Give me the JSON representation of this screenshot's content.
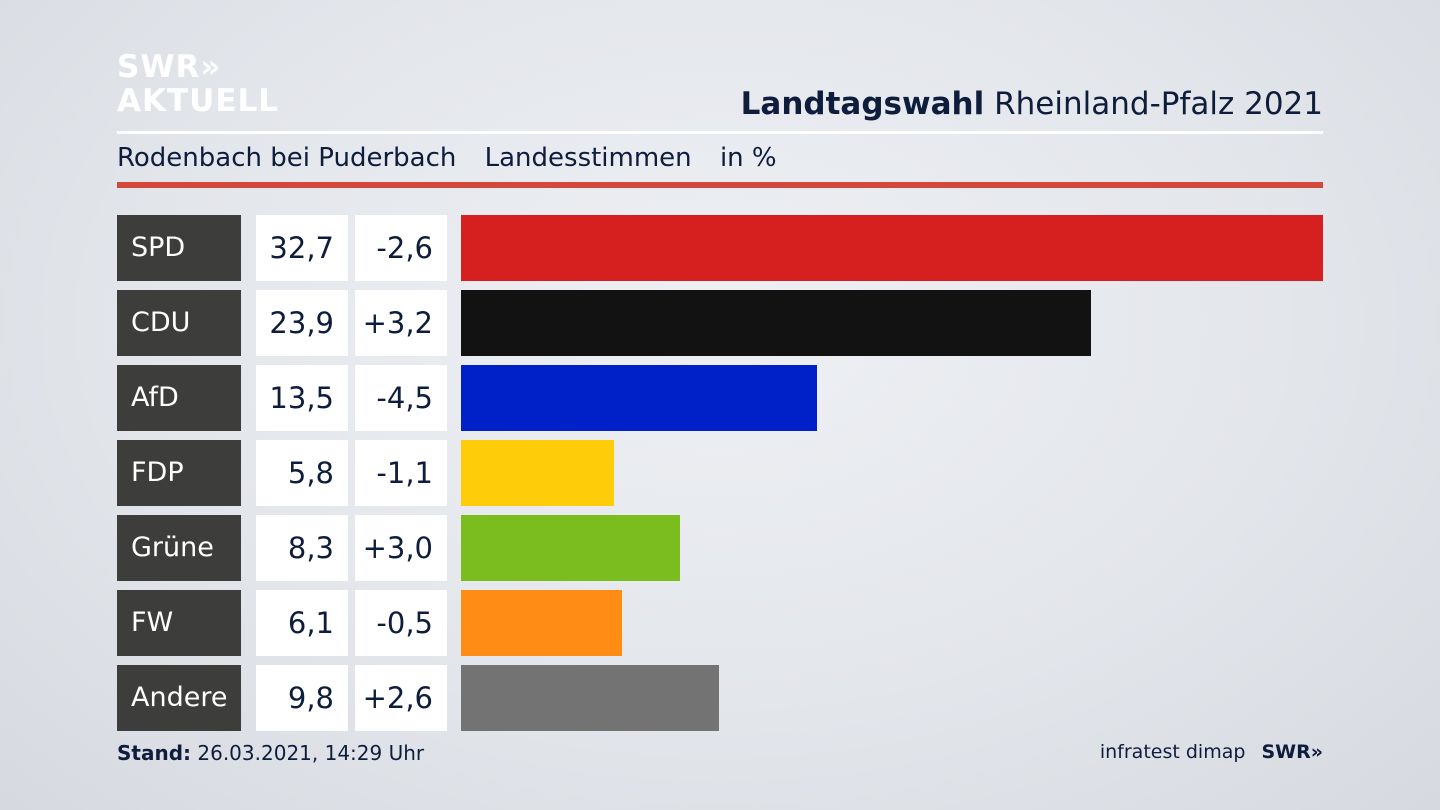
{
  "header": {
    "logo_line1": "SWR»",
    "logo_line2": "AKTUELL",
    "title_bold": "Landtagswahl",
    "title_rest": "Rheinland-Pfalz 2021"
  },
  "subheader": {
    "place": "Rodenbach bei Puderbach",
    "vote_type": "Landesstimmen",
    "unit": "in %"
  },
  "chart_data": {
    "type": "bar",
    "categories": [
      "SPD",
      "CDU",
      "AfD",
      "FDP",
      "Grüne",
      "FW",
      "Andere"
    ],
    "values": [
      32.7,
      23.9,
      13.5,
      5.8,
      8.3,
      6.1,
      9.8
    ],
    "value_labels": [
      "32,7",
      "23,9",
      "13,5",
      "5,8",
      "8,3",
      "6,1",
      "9,8"
    ],
    "diff_labels": [
      "-2,6",
      "+3,2",
      "-4,5",
      "-1,1",
      "+3,0",
      "-0,5",
      "+2,6"
    ],
    "colors": [
      "#d62020",
      "#121212",
      "#0021c8",
      "#ffcc0a",
      "#7bbd1e",
      "#ff8c14",
      "#737373"
    ],
    "orientation": "horizontal"
  },
  "footer": {
    "stand_label": "Stand:",
    "stand_value": "26.03.2021, 14:29 Uhr",
    "source": "infratest dimap",
    "brand": "SWR»"
  }
}
